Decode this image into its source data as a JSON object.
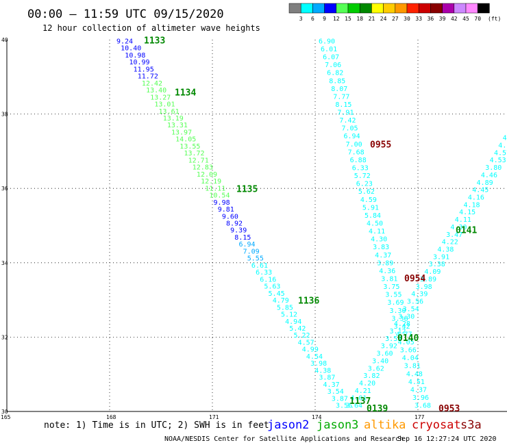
{
  "header": {
    "title": "00:00 – 11:59 UTC 09/15/2020",
    "subtitle": "12 hour collection of altimeter wave heights"
  },
  "colorbar": {
    "colors": [
      "#7f7f7f",
      "#00ffff",
      "#00aaff",
      "#0000ff",
      "#55ff55",
      "#00cc00",
      "#008800",
      "#ffff00",
      "#ffcc00",
      "#ff9900",
      "#ff2200",
      "#cc0000",
      "#880000",
      "#aa00aa",
      "#cc88ff",
      "#ff88ff",
      "#000000"
    ],
    "labels": [
      "3",
      "6",
      "9",
      "12",
      "15",
      "18",
      "21",
      "24",
      "27",
      "30",
      "33",
      "36",
      "39",
      "42",
      "45",
      "70"
    ],
    "unit": "(ft)"
  },
  "note": "note: 1) Time is in UTC; 2) SWH is in feet",
  "legend": [
    {
      "name": "jason2",
      "color": "#0000ff"
    },
    {
      "name": "jason3",
      "color": "#00aa00"
    },
    {
      "name": "altika",
      "color": "#ff9900"
    },
    {
      "name": "cryosat",
      "color": "#cc0000"
    },
    {
      "name": "s3a",
      "color": "#880000"
    }
  ],
  "footer": {
    "credit": "NOAA/NESDIS Center for Satellite Applications and Research",
    "timestamp": "Sep 16 12:27:24 UTC 2020"
  },
  "chart_data": {
    "type": "scatter",
    "xlim": [
      165,
      179.6
    ],
    "ylim": [
      30,
      40
    ],
    "xticks": [
      "165",
      "168",
      "171",
      "174",
      "177"
    ],
    "yticks": [
      "30",
      "32",
      "34",
      "36",
      "38",
      "40"
    ],
    "grid": "dotted",
    "tracks": [
      {
        "name": "pass-A",
        "from": [
          168.2,
          39.9
        ],
        "to": [
          174.6,
          30.1
        ],
        "colors": [
          "#0000ff",
          "#0000ff",
          "#0000ff",
          "#0000ff",
          "#0000ff",
          "#0000ff",
          "#55ff55",
          "#55ff55",
          "#55ff55",
          "#55ff55",
          "#55ff55",
          "#55ff55",
          "#55ff55",
          "#55ff55",
          "#55ff55",
          "#55ff55",
          "#55ff55",
          "#55ff55",
          "#55ff55",
          "#55ff55",
          "#55ff55",
          "#55ff55",
          "#55ff55",
          "#0000ff",
          "#0000ff",
          "#0000ff",
          "#0000ff",
          "#0000ff",
          "#0000ff",
          "#00aaff",
          "#00aaff",
          "#00aaff",
          "#00ffff",
          "#00ffff",
          "#00ffff",
          "#00ffff",
          "#00ffff",
          "#00ffff",
          "#00ffff",
          "#00ffff",
          "#00ffff",
          "#00ffff",
          "#00ffff",
          "#00ffff",
          "#00ffff",
          "#00ffff",
          "#00ffff",
          "#00ffff",
          "#00ffff",
          "#00ffff",
          "#00ffff",
          "#00ffff",
          "#00ffff"
        ],
        "values": [
          "9.24",
          "10.40",
          "10.98",
          "10.99",
          "11.95",
          "11.72",
          "12.42",
          "13.40",
          "13.27",
          "13.01",
          "13.61",
          "13.19",
          "13.31",
          "13.97",
          "14.05",
          "13.55",
          "13.72",
          "12.71",
          "12.83",
          "12.09",
          "12.19",
          "11.11",
          "10.54",
          "9.98",
          "9.81",
          "9.60",
          "8.92",
          "9.39",
          "8.15",
          "6.94",
          "7.09",
          "5.55",
          "6.61",
          "6.33",
          "6.16",
          "5.63",
          "5.45",
          "4.79",
          "5.85",
          "5.12",
          "4.94",
          "5.42",
          "5.22",
          "4.57",
          "4.99",
          "4.54",
          "3.98",
          "4.38",
          "3.87",
          "4.37",
          "3.54",
          "3.87",
          "3.56"
        ]
      },
      {
        "name": "pass-B",
        "from": [
          174.1,
          39.9
        ],
        "to": [
          176.9,
          30.1
        ],
        "colors": [
          "#00ffff"
        ],
        "values": [
          "6.90",
          "6.01",
          "6.07",
          "7.06",
          "6.82",
          "8.85",
          "8.07",
          "7.77",
          "8.15",
          "7.91",
          "7.42",
          "7.05",
          "6.94",
          "7.00",
          "7.68",
          "6.88",
          "6.33",
          "5.72",
          "6.23",
          "5.62",
          "4.59",
          "5.91",
          "5.84",
          "4.50",
          "4.11",
          "4.30",
          "3.83",
          "4.37",
          "3.89",
          "4.36",
          "3.81",
          "3.75",
          "3.55",
          "3.69",
          "3.30",
          "3.38",
          "3.42",
          "4.77",
          "4.05",
          "3.66",
          "4.04",
          "3.81",
          "4.48",
          "4.51",
          "4.37",
          "3.96",
          "3.68"
        ]
      },
      {
        "name": "pass-C",
        "from": [
          174.9,
          30.1
        ],
        "to": [
          179.6,
          37.5
        ],
        "colors": [
          "#00ffff"
        ],
        "values": [
          "3.64",
          "4.01",
          "4.21",
          "4.20",
          "3.82",
          "3.62",
          "3.40",
          "3.60",
          "3.92",
          "3.53",
          "3.12",
          "4.28",
          "3.30",
          "3.54",
          "3.56",
          "4.39",
          "3.98",
          "3.89",
          "4.09",
          "3.38",
          "3.91",
          "4.38",
          "4.22",
          "3.47",
          "4.30",
          "4.11",
          "4.15",
          "4.18",
          "4.16",
          "4.45",
          "4.89",
          "4.46",
          "3.80",
          "4.53",
          "4.57",
          "4.52",
          "4.30",
          "4.4"
        ]
      }
    ],
    "pass_labels": [
      {
        "text": "1133",
        "x": 169.0,
        "y": 39.9,
        "color": "#008800"
      },
      {
        "text": "1134",
        "x": 169.9,
        "y": 38.5,
        "color": "#008800"
      },
      {
        "text": "1135",
        "x": 171.7,
        "y": 35.9,
        "color": "#008800"
      },
      {
        "text": "1136",
        "x": 173.5,
        "y": 32.9,
        "color": "#008800"
      },
      {
        "text": "1137",
        "x": 175.0,
        "y": 30.2,
        "color": "#008800"
      },
      {
        "text": "0139",
        "x": 175.5,
        "y": 30.0,
        "color": "#008800"
      },
      {
        "text": "0140",
        "x": 176.4,
        "y": 31.9,
        "color": "#008800"
      },
      {
        "text": "0141",
        "x": 178.1,
        "y": 34.8,
        "color": "#008800"
      },
      {
        "text": "0955",
        "x": 175.6,
        "y": 37.1,
        "color": "#880000"
      },
      {
        "text": "0954",
        "x": 176.6,
        "y": 33.5,
        "color": "#880000"
      },
      {
        "text": "0953",
        "x": 177.6,
        "y": 30.0,
        "color": "#880000"
      }
    ]
  }
}
